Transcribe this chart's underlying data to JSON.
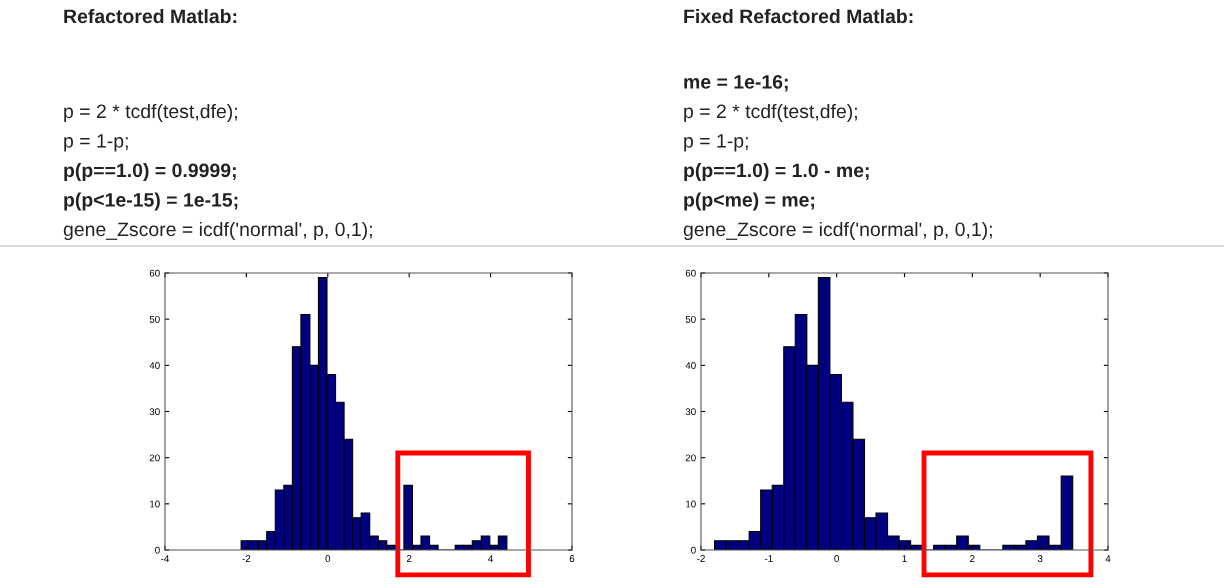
{
  "chart_data": [
    {
      "type": "histogram",
      "title": "Refactored Matlab:",
      "annotations": [
        "p = 2 * tcdf(test,dfe);",
        "p = 1-p;",
        "p(p==1.0) = 0.9999;",
        "p(p<1e-15) = 1e-15;",
        "gene_Zscore = icdf('normal', p, 0,1);"
      ],
      "bins": [
        -2.13,
        -1.92,
        -1.71,
        -1.5,
        -1.29,
        -1.08,
        -0.87,
        -0.66,
        -0.44,
        -0.23,
        -0.02,
        0.19,
        0.4,
        0.61,
        0.82,
        1.03,
        1.24,
        1.45,
        1.66,
        1.87,
        2.08,
        2.29,
        2.5,
        2.71,
        2.92,
        3.13,
        3.34,
        3.55,
        3.77,
        3.98,
        4.19,
        4.4
      ],
      "values": [
        2,
        2,
        2,
        4,
        13,
        14,
        44,
        51,
        40,
        59,
        38,
        32,
        24,
        7,
        8,
        3,
        2,
        1,
        0,
        14,
        1,
        3,
        1,
        0,
        0,
        1,
        1,
        2,
        3,
        1,
        3
      ],
      "color": "#000080",
      "xlim": [
        -4,
        6
      ],
      "xticks": [
        -4,
        -2,
        0,
        2,
        4,
        6
      ],
      "ylim": [
        0,
        60
      ],
      "yticks": [
        0,
        10,
        20,
        30,
        40,
        50,
        60
      ],
      "grid": false,
      "legend": false
    },
    {
      "type": "histogram",
      "title": "Fixed Refactored Matlab:",
      "annotations": [
        "me = 1e-16;",
        "p = 2 * tcdf(test,dfe);",
        "p = 1-p;",
        "p(p==1.0) = 1.0 - me;",
        "p(p<me) = me;",
        "gene_Zscore = icdf('normal', p, 0,1);"
      ],
      "bins": [
        -1.8,
        -1.63,
        -1.46,
        -1.29,
        -1.12,
        -0.95,
        -0.78,
        -0.61,
        -0.44,
        -0.27,
        -0.1,
        0.07,
        0.24,
        0.41,
        0.58,
        0.75,
        0.92,
        1.09,
        1.26,
        1.43,
        1.6,
        1.77,
        1.94,
        2.11,
        2.28,
        2.45,
        2.62,
        2.79,
        2.96,
        3.13,
        3.31,
        3.48
      ],
      "values": [
        2,
        2,
        2,
        4,
        13,
        14,
        44,
        51,
        40,
        59,
        38,
        32,
        24,
        7,
        8,
        3,
        2,
        1,
        0,
        1,
        1,
        3,
        1,
        0,
        0,
        1,
        1,
        2,
        3,
        1,
        16
      ],
      "color": "#000080",
      "xlim": [
        -2,
        4
      ],
      "xticks": [
        -2,
        -1,
        0,
        1,
        2,
        3,
        4
      ],
      "ylim": [
        0,
        60
      ],
      "yticks": [
        0,
        10,
        20,
        30,
        40,
        50,
        60
      ],
      "grid": false,
      "legend": false
    }
  ]
}
